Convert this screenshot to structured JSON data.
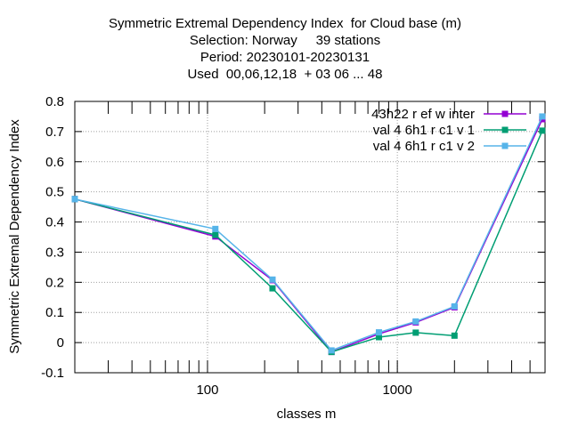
{
  "chart_data": {
    "type": "line",
    "title_lines": [
      "Symmetric Extremal Dependency Index  for Cloud base (m)",
      "Selection: Norway     39 stations",
      "Period: 20230101-20230131",
      "Used  00,06,12,18  + 03 06 ... 48"
    ],
    "xlabel": "classes m",
    "ylabel": "Symmetric Extremal Dependency Index",
    "x_scale": "log",
    "xlim": [
      20,
      6000
    ],
    "ylim": [
      -0.1,
      0.8
    ],
    "x_major_ticks": [
      100,
      1000
    ],
    "x_tick_labels": [
      "100",
      "1000"
    ],
    "y_ticks": [
      -0.1,
      0,
      0.1,
      0.2,
      0.3,
      0.4,
      0.5,
      0.6,
      0.7,
      0.8
    ],
    "y_tick_labels": [
      "-0.1",
      "0",
      "0.1",
      "0.2",
      "0.3",
      "0.4",
      "0.5",
      "0.6",
      "0.7",
      "0.8"
    ],
    "grid": true,
    "legend_position": "top-right",
    "x": [
      20,
      110,
      220,
      450,
      800,
      1250,
      2000,
      5800
    ],
    "series": [
      {
        "name": "43h22_ref_winter",
        "legend_label": "43h22 r ef w inter",
        "color": "#9400d3",
        "marker": "square",
        "values": [
          0.476,
          0.352,
          0.207,
          -0.031,
          0.029,
          0.067,
          0.117,
          0.741
        ]
      },
      {
        "name": "val_46h1_rc1_v1",
        "legend_label": "val 4 6h1 r c1 v 1",
        "color": "#009e73",
        "marker": "square",
        "values": [
          0.476,
          0.357,
          0.18,
          -0.031,
          0.018,
          0.033,
          0.023,
          0.703
        ]
      },
      {
        "name": "val_46h1_rc1_v2",
        "legend_label": "val 4 6h1 r c1 v 2",
        "color": "#56b4e9",
        "marker": "square",
        "values": [
          0.476,
          0.377,
          0.209,
          -0.026,
          0.034,
          0.07,
          0.12,
          0.75
        ]
      }
    ]
  }
}
